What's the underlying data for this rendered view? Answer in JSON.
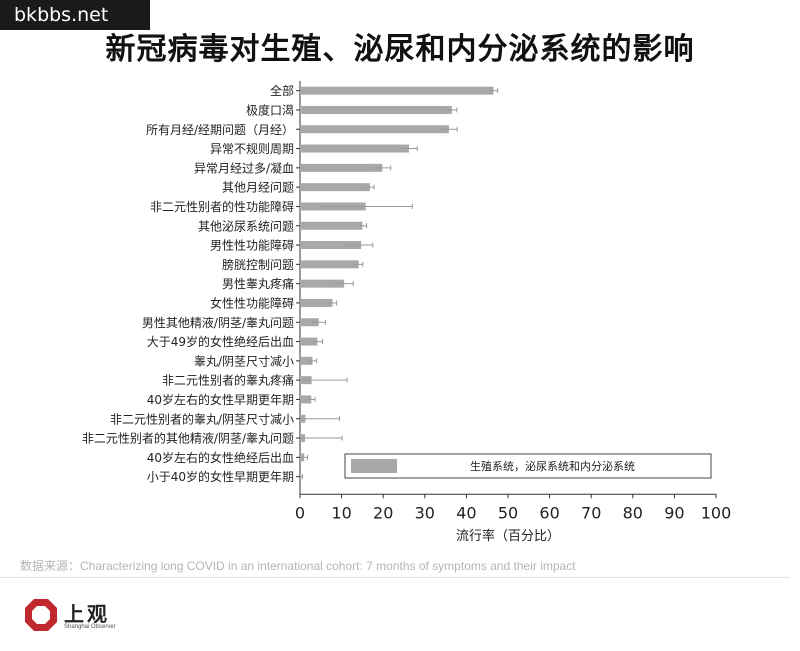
{
  "watermark": "bkbbs.net",
  "title": "新冠病毒对生殖、泌尿和内分泌系统的影响",
  "chart_data": {
    "type": "bar",
    "orientation": "horizontal",
    "categories": [
      "全部",
      "极度口渴",
      "所有月经/经期问题（月经）",
      "异常不规则周期",
      "异常月经过多/凝血",
      "其他月经问题",
      "非二元性别者的性功能障碍",
      "其他泌尿系统问题",
      "男性性功能障碍",
      "膀胱控制问题",
      "男性睾丸疼痛",
      "女性性功能障碍",
      "男性其他精液/阴茎/睾丸问题",
      "大于49岁的女性绝经后出血",
      "睾丸/阴茎尺寸减小",
      "非二元性别者的睾丸疼痛",
      "40岁左右的女性早期更年期",
      "非二元性别者的睾丸/阴茎尺寸减小",
      "非二元性别者的其他精液/阴茎/睾丸问题",
      "40岁左右的女性绝经后出血",
      "小于40岁的女性早期更年期"
    ],
    "series": [
      {
        "name": "生殖系统，泌尿系统和内分泌系统",
        "values": [
          46.5,
          36.5,
          35.8,
          26.2,
          19.8,
          16.8,
          15.8,
          15.0,
          14.7,
          14.1,
          10.6,
          7.8,
          4.5,
          4.2,
          3.0,
          2.8,
          2.7,
          1.3,
          1.2,
          1.0,
          0.3
        ],
        "errors": [
          1.0,
          1.2,
          2.0,
          2.0,
          2.0,
          1.0,
          11.2,
          1.0,
          2.8,
          1.0,
          2.2,
          1.0,
          1.6,
          1.2,
          1.0,
          8.5,
          0.9,
          8.2,
          8.9,
          0.8,
          0.3
        ]
      }
    ],
    "xlabel": "流行率（百分比）",
    "ylabel": "",
    "xlim": [
      0,
      100
    ],
    "xticks": [
      0,
      10,
      20,
      30,
      40,
      50,
      60,
      70,
      80,
      90,
      100
    ],
    "grid": false,
    "legend_position": "inside-bottom-right",
    "colors": {
      "bar": "#a8a8a8",
      "axis": "#333333",
      "error": "#999999"
    }
  },
  "source": "数据来源：Characterizing long COVID in an international cohort: 7 months of symptoms and their impact",
  "logo": {
    "name": "上观",
    "sub": "Shanghai Observer",
    "color": "#c0282d"
  }
}
